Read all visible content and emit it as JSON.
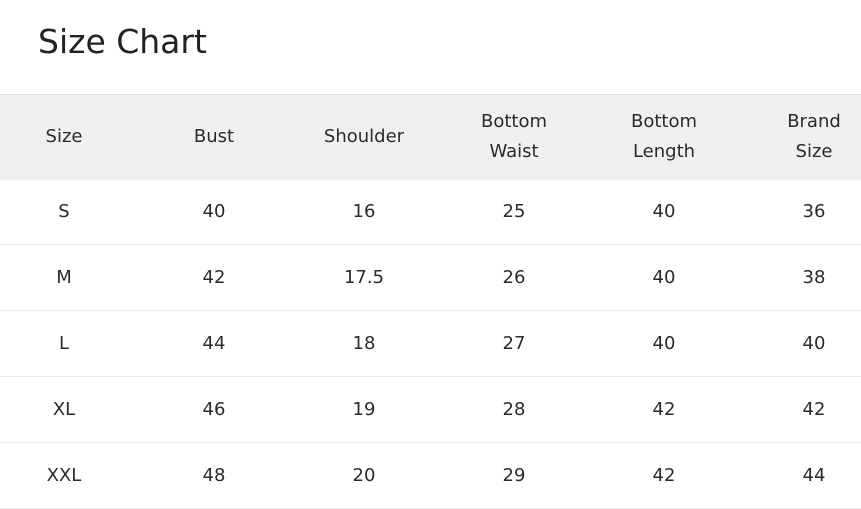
{
  "title": "Size Chart",
  "headers": [
    [
      "Size"
    ],
    [
      "Bust"
    ],
    [
      "Shoulder"
    ],
    [
      "Bottom",
      "Waist"
    ],
    [
      "Bottom",
      "Length"
    ],
    [
      "Brand",
      "Size"
    ]
  ],
  "rows": [
    [
      "S",
      "40",
      "16",
      "25",
      "40",
      "36"
    ],
    [
      "M",
      "42",
      "17.5",
      "26",
      "40",
      "38"
    ],
    [
      "L",
      "44",
      "18",
      "27",
      "40",
      "40"
    ],
    [
      "XL",
      "46",
      "19",
      "28",
      "42",
      "42"
    ],
    [
      "XXL",
      "48",
      "20",
      "29",
      "42",
      "44"
    ]
  ]
}
